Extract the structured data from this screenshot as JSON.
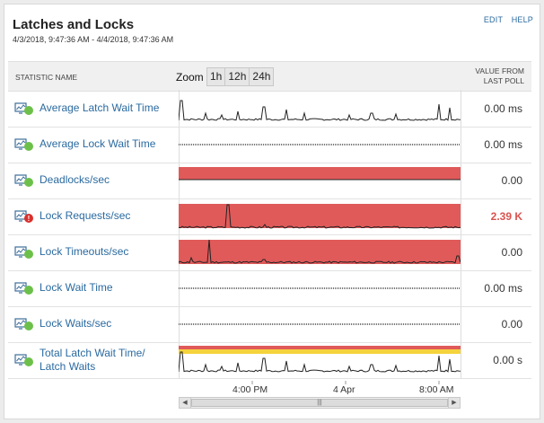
{
  "header": {
    "title": "Latches and Locks",
    "date_range": "4/3/2018, 9:47:36 AM - 4/4/2018, 9:47:36 AM",
    "edit_label": "EDIT",
    "help_label": "HELP"
  },
  "table": {
    "col_statistic": "STATISTIC NAME",
    "zoom_label": "Zoom",
    "zoom_options": [
      "1h",
      "12h",
      "24h"
    ],
    "col_value_line1": "VALUE FROM",
    "col_value_line2": "LAST POLL"
  },
  "rows": [
    {
      "label": "Average Latch Wait Time",
      "value": "0.00 ms",
      "status": "ok",
      "chart": "spiky"
    },
    {
      "label": "Average Lock Wait Time",
      "value": "0.00 ms",
      "status": "ok",
      "chart": "flat"
    },
    {
      "label": "Deadlocks/sec",
      "value": "0.00",
      "status": "ok",
      "chart": "red"
    },
    {
      "label": "Lock Requests/sec",
      "value": "2.39 K",
      "status": "critical",
      "chart": "red-spike"
    },
    {
      "label": "Lock Timeouts/sec",
      "value": "0.00",
      "status": "ok",
      "chart": "red-spike2"
    },
    {
      "label": "Lock Wait Time",
      "value": "0.00 ms",
      "status": "ok",
      "chart": "flat"
    },
    {
      "label": "Lock Waits/sec",
      "value": "0.00",
      "status": "ok",
      "chart": "flat"
    },
    {
      "label_line1": "Total Latch Wait Time/",
      "label_line2": "Latch Waits",
      "value": "0.00 s",
      "status": "ok",
      "chart": "red-yellow-spiky"
    }
  ],
  "axis": {
    "labels": [
      "4:00 PM",
      "4 Apr",
      "8:00 AM"
    ]
  },
  "colors": {
    "link": "#2a6aa0",
    "status_ok": "#6cc04a",
    "status_critical": "#d9302c",
    "threshold_critical": "#e05a5a",
    "threshold_warning": "#f5d33c"
  }
}
